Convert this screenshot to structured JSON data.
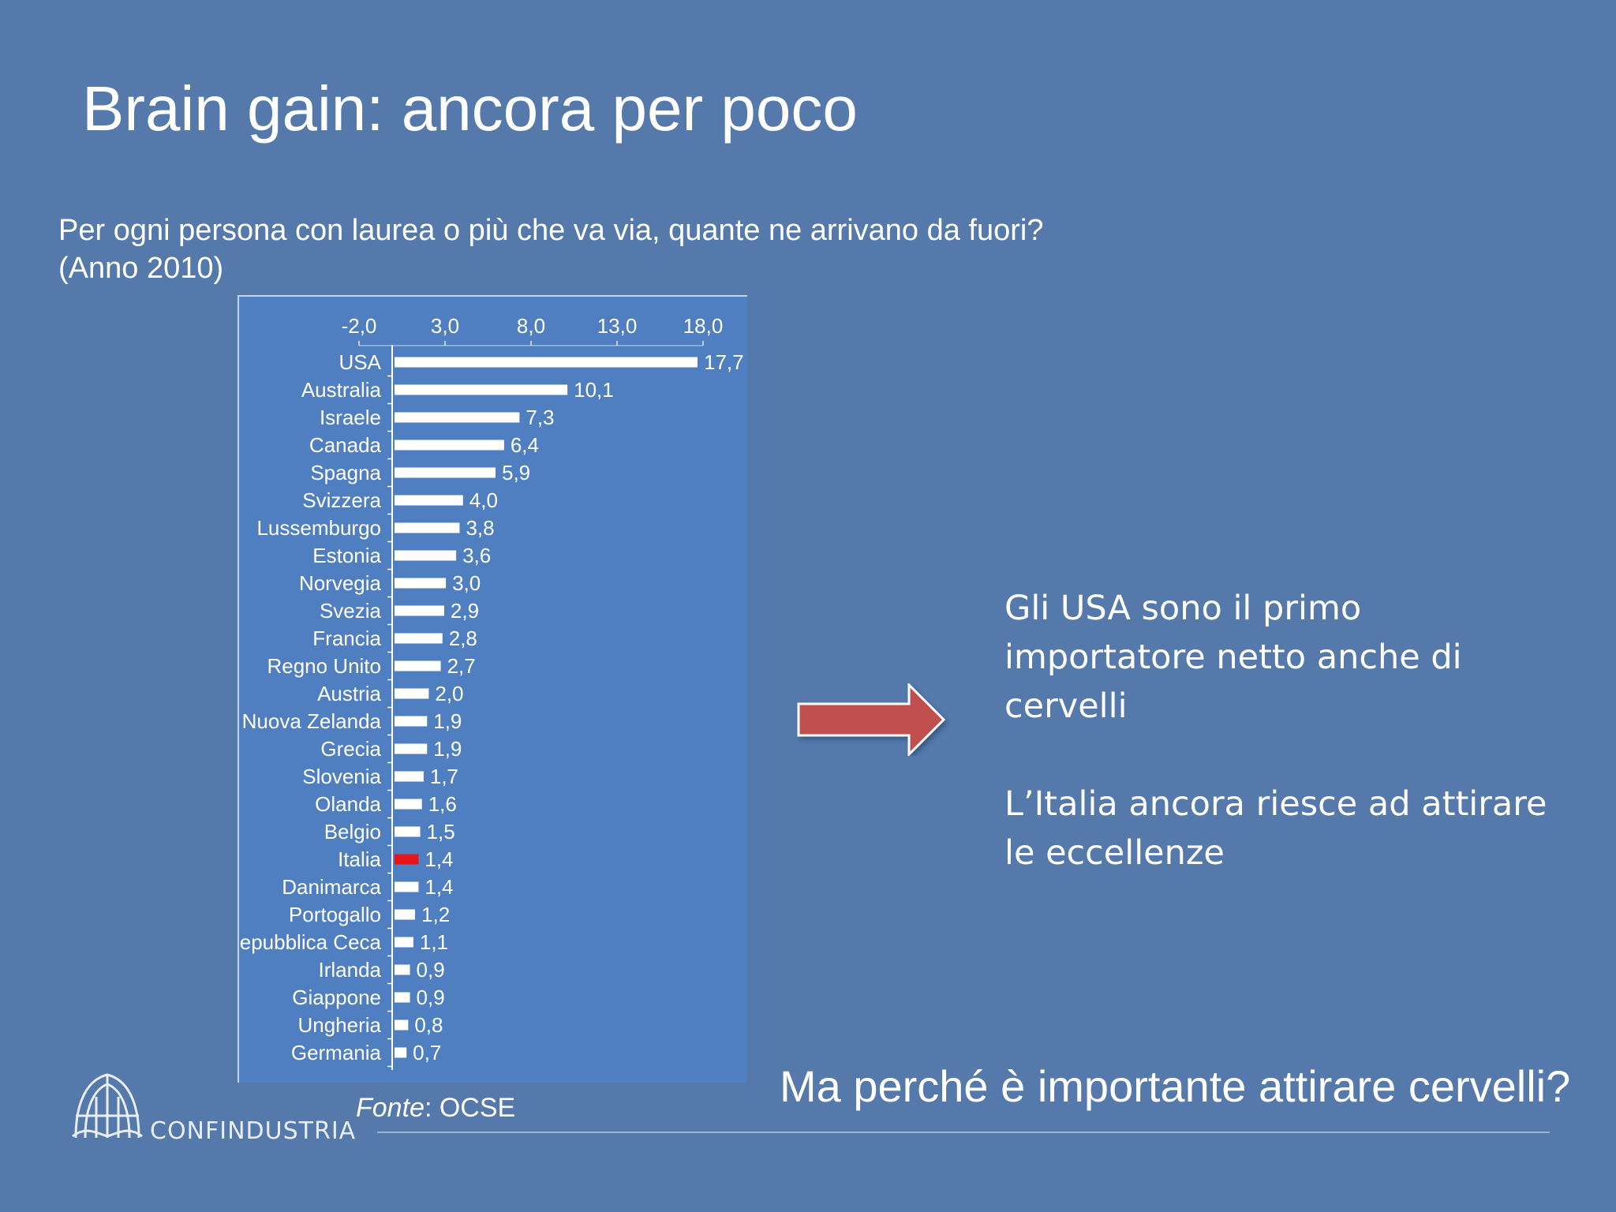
{
  "slide": {
    "title": "Brain gain: ancora per poco",
    "question_line1": "Per ogni persona con laurea  o più che va via, quante ne arrivano da fuori?",
    "question_line2": "(Anno 2010)",
    "note_1": "Gli USA sono il primo importatore netto anche di cervelli",
    "note_2": "L’Italia ancora riesce ad attirare le eccellenze",
    "bottom_question": "Ma perché è importante attirare cervelli?",
    "source_label": "Fonte",
    "source_value": ": OCSE",
    "logo_text": "CONFINDUSTRIA"
  },
  "colors": {
    "background": "#5579aa",
    "chart_background": "#4f7fc1",
    "bar": "#ffffff",
    "highlight_bar": "#e8141c",
    "arrow": "#c0504d"
  },
  "chart_data": {
    "type": "bar",
    "orientation": "horizontal",
    "categories": [
      "USA",
      "Australia",
      "Israele",
      "Canada",
      "Spagna",
      "Svizzera",
      "Lussemburgo",
      "Estonia",
      "Norvegia",
      "Svezia",
      "Francia",
      "Regno Unito",
      "Austria",
      "Nuova Zelanda",
      "Grecia",
      "Slovenia",
      "Olanda",
      "Belgio",
      "Italia",
      "Danimarca",
      "Portogallo",
      "Repubblica Ceca",
      "Irlanda",
      "Giappone",
      "Ungheria",
      "Germania"
    ],
    "values": [
      17.7,
      10.1,
      7.3,
      6.4,
      5.9,
      4.0,
      3.8,
      3.6,
      3.0,
      2.9,
      2.8,
      2.7,
      2.0,
      1.9,
      1.9,
      1.7,
      1.6,
      1.5,
      1.4,
      1.4,
      1.2,
      1.1,
      0.9,
      0.9,
      0.8,
      0.7
    ],
    "value_labels": [
      "17,7",
      "10,1",
      "7,3",
      "6,4",
      "5,9",
      "4,0",
      "3,8",
      "3,6",
      "3,0",
      "2,9",
      "2,8",
      "2,7",
      "2,0",
      "1,9",
      "1,9",
      "1,7",
      "1,6",
      "1,5",
      "1,4",
      "1,4",
      "1,2",
      "1,1",
      "0,9",
      "0,9",
      "0,8",
      "0,7"
    ],
    "highlight": "Italia",
    "x_ticks": [
      -2.0,
      3.0,
      8.0,
      13.0,
      18.0
    ],
    "x_tick_labels": [
      "-2,0",
      "3,0",
      "8,0",
      "13,0",
      "18,0"
    ],
    "xlim": [
      -2.0,
      18.0
    ],
    "axis_position": "top",
    "grid": false,
    "legend": "none"
  }
}
